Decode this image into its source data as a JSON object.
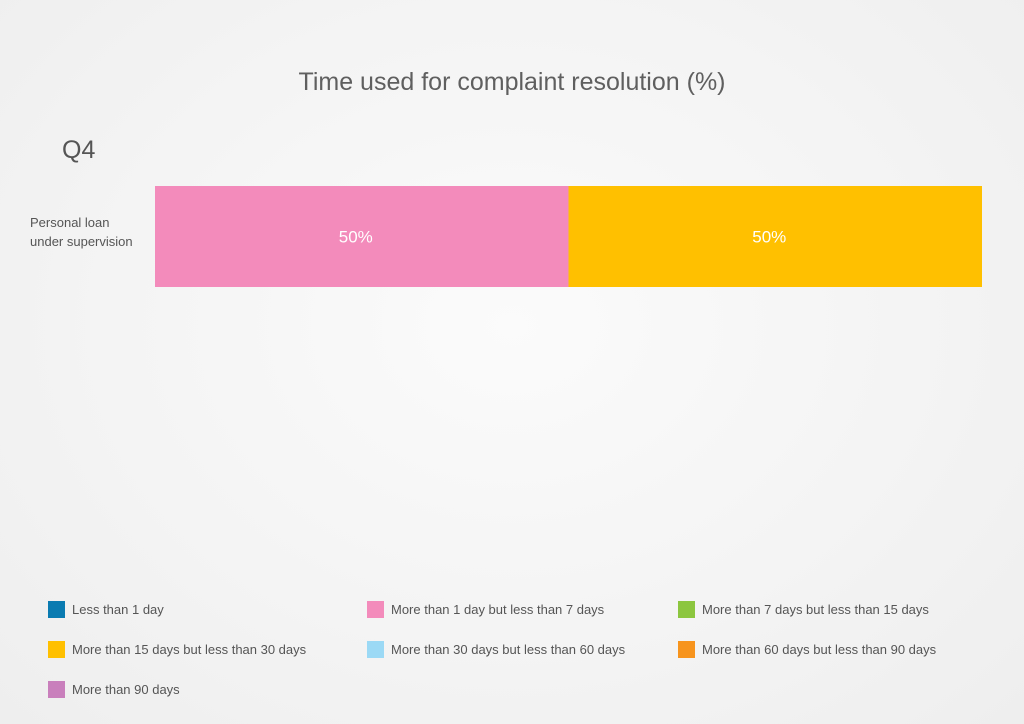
{
  "chart_data": {
    "type": "bar",
    "orientation": "horizontal",
    "stacked": true,
    "title": "Time used for complaint resolution (%)",
    "period": "Q4",
    "categories": [
      "Personal loan under supervision"
    ],
    "category_lines": [
      "Personal loan",
      "under supervision"
    ],
    "series": [
      {
        "name": "Less than 1 day",
        "color": "#0a7bb1",
        "values": [
          0
        ]
      },
      {
        "name": "More than 1 day but less than 7 days",
        "color": "#f38bbb",
        "values": [
          50
        ]
      },
      {
        "name": "More than 7 days but less than 15 days",
        "color": "#8cc63f",
        "values": [
          0
        ]
      },
      {
        "name": "More than 15 days but less than 30 days",
        "color": "#ffc000",
        "values": [
          50
        ]
      },
      {
        "name": "More than 30 days but less than 60 days",
        "color": "#9bd9f5",
        "values": [
          0
        ]
      },
      {
        "name": "More than 60 days but less than 90 days",
        "color": "#f7941d",
        "values": [
          0
        ]
      },
      {
        "name": "More than 90 days",
        "color": "#c97fbc",
        "values": [
          0
        ]
      }
    ],
    "value_suffix": "%",
    "xlim": [
      0,
      100
    ],
    "grid": false,
    "legend_position": "bottom"
  }
}
